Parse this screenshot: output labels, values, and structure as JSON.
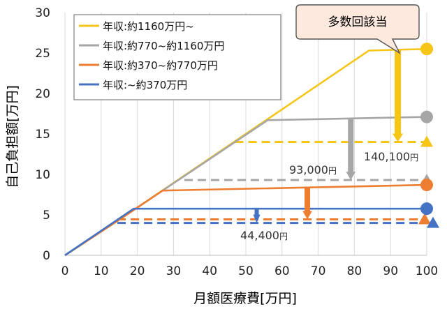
{
  "chart_data": {
    "type": "line",
    "xlabel": "月額医療費[万円]",
    "ylabel": "自己負担額[万円]",
    "xlim": [
      0,
      100
    ],
    "ylim": [
      0,
      30
    ],
    "x_ticks": [
      "0",
      "10",
      "20",
      "30",
      "40",
      "50",
      "60",
      "70",
      "80",
      "90",
      "100"
    ],
    "y_ticks": [
      "0",
      "5",
      "10",
      "15",
      "20",
      "25",
      "30"
    ],
    "grid": "vertical",
    "legend_position": "top-left",
    "series": [
      {
        "name": "年収:約1160万円~",
        "color": "#f5c518",
        "points": [
          [
            0,
            0
          ],
          [
            15,
            4.4
          ],
          [
            84,
            25.3
          ],
          [
            100,
            25.5
          ]
        ],
        "reduced_level": 14.01,
        "marker_x": 100,
        "dash_from": 47
      },
      {
        "name": "年収:約770~約1160万円",
        "color": "#a6a6a6",
        "points": [
          [
            0,
            0
          ],
          [
            15,
            4.4
          ],
          [
            56,
            16.7
          ],
          [
            100,
            17.1
          ]
        ],
        "reduced_level": 9.3,
        "marker_x": 100,
        "dash_from": 33
      },
      {
        "name": "年収:約370~約770万円",
        "color": "#ed7d31",
        "points": [
          [
            0,
            0
          ],
          [
            15,
            4.4
          ],
          [
            27,
            8.0
          ],
          [
            100,
            8.7
          ]
        ],
        "reduced_level": 4.44,
        "marker_x": 100,
        "dash_from": 14.5
      },
      {
        "name": "年収:~約370万円",
        "color": "#4472c4",
        "points": [
          [
            0,
            0
          ],
          [
            19,
            5.76
          ],
          [
            100,
            5.76
          ]
        ],
        "reduced_level": 4.0,
        "marker_x": 100,
        "dash_from": 14.5
      }
    ],
    "annotations": {
      "callout": "多数回該当",
      "value_labels": [
        "140,100円",
        "93,000円",
        "44,400円"
      ]
    }
  }
}
